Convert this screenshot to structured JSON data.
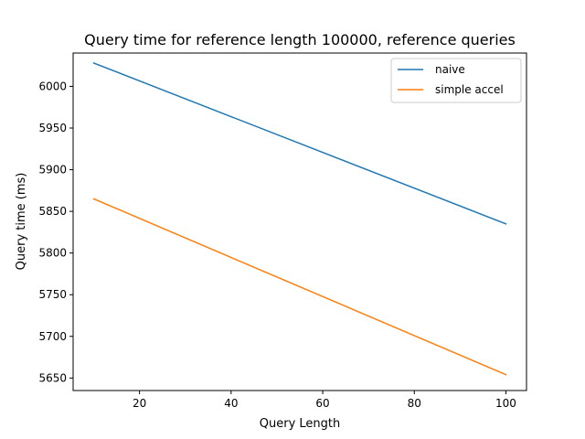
{
  "chart_data": {
    "type": "line",
    "title": "Query time for reference length 100000, reference queries",
    "xlabel": "Query Length",
    "ylabel": "Query time (ms)",
    "xlim": [
      5.5,
      104.5
    ],
    "ylim": [
      5635,
      6040
    ],
    "x_ticks": [
      20,
      40,
      60,
      80,
      100
    ],
    "y_ticks": [
      5650,
      5700,
      5750,
      5800,
      5850,
      5900,
      5950,
      6000
    ],
    "grid": false,
    "legend_position": "top-right",
    "series": [
      {
        "name": "naive",
        "color": "#1f77b4",
        "x": [
          10,
          100
        ],
        "y": [
          6028,
          5835
        ]
      },
      {
        "name": "simple accel",
        "color": "#ff7f0e",
        "x": [
          10,
          100
        ],
        "y": [
          5865,
          5654
        ]
      }
    ]
  }
}
